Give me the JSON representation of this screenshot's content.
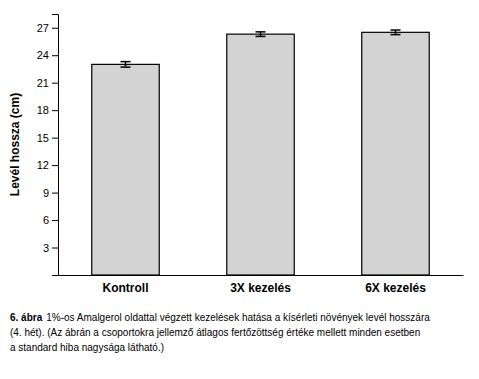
{
  "chart_data": {
    "type": "bar",
    "categories": [
      "Kontroll",
      "3X kezelés",
      "6X kezelés"
    ],
    "values": [
      23.0,
      26.3,
      26.5
    ],
    "errors": [
      0.3,
      0.25,
      0.25
    ],
    "color": "#d3d3d3",
    "y_label": "Levél hossza (cm)",
    "ylim": [
      0,
      28.5
    ],
    "yticks": [
      3,
      6,
      9,
      12,
      15,
      18,
      21,
      24,
      27
    ],
    "grid": false,
    "annotations": [
      "6. ábra",
      "1%-os Amalgerol oldattal végzett kezelések hatása a kísérleti növények levél hosszára",
      "(4. hét). (Az ábrán a csoportokra jellemző átlagos fertőzöttség értéke mellett minden esetben",
      "a standard hiba nagysága látható.)"
    ]
  }
}
